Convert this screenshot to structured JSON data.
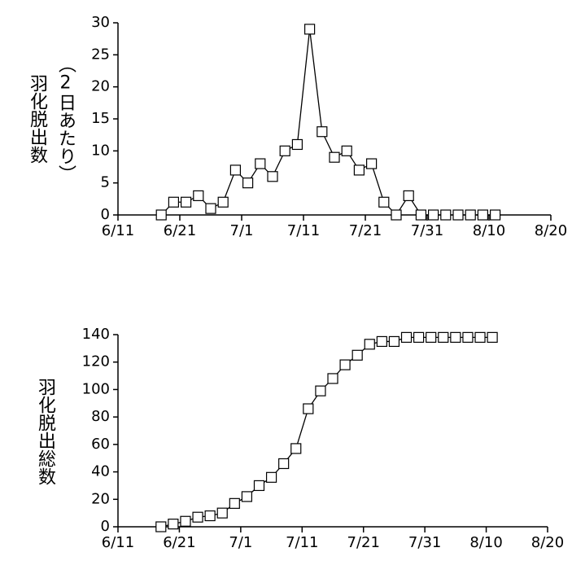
{
  "chart_data": [
    {
      "type": "line",
      "ylabel": [
        "羽化脱出数",
        "（2日あたり）"
      ],
      "x": [
        "6/18",
        "6/20",
        "6/22",
        "6/24",
        "6/26",
        "6/28",
        "6/30",
        "7/2",
        "7/4",
        "7/6",
        "7/8",
        "7/10",
        "7/12",
        "7/14",
        "7/16",
        "7/18",
        "7/20",
        "7/22",
        "7/24",
        "7/26",
        "7/28",
        "7/30",
        "8/1",
        "8/3",
        "8/5",
        "8/7",
        "8/9",
        "8/11"
      ],
      "series": [
        {
          "color": "#000000",
          "values": [
            0,
            2,
            2,
            3,
            1,
            2,
            7,
            5,
            8,
            6,
            10,
            11,
            29,
            13,
            9,
            10,
            7,
            8,
            2,
            0,
            3,
            0,
            0,
            0,
            0,
            0,
            0,
            0
          ]
        }
      ],
      "xlim": [
        "6/11",
        "8/20"
      ],
      "xticks": [
        "6/11",
        "6/21",
        "7/1",
        "7/11",
        "7/21",
        "7/31",
        "8/10",
        "8/20"
      ],
      "ylim": [
        0,
        30
      ],
      "yticks": [
        0,
        5,
        10,
        15,
        20,
        25,
        30
      ]
    },
    {
      "type": "line",
      "ylabel": [
        "羽化脱出総数"
      ],
      "x": [
        "6/18",
        "6/20",
        "6/22",
        "6/24",
        "6/26",
        "6/28",
        "6/30",
        "7/2",
        "7/4",
        "7/6",
        "7/8",
        "7/10",
        "7/12",
        "7/14",
        "7/16",
        "7/18",
        "7/20",
        "7/22",
        "7/24",
        "7/26",
        "7/28",
        "7/30",
        "8/1",
        "8/3",
        "8/5",
        "8/7",
        "8/9",
        "8/11"
      ],
      "series": [
        {
          "color": "#000000",
          "values": [
            0,
            2,
            4,
            7,
            8,
            10,
            17,
            22,
            30,
            36,
            46,
            57,
            86,
            99,
            108,
            118,
            125,
            133,
            135,
            135,
            138,
            138,
            138,
            138,
            138,
            138,
            138,
            138
          ]
        }
      ],
      "xlim": [
        "6/11",
        "8/20"
      ],
      "xticks": [
        "6/11",
        "6/21",
        "7/1",
        "7/11",
        "7/21",
        "7/31",
        "8/10",
        "8/20"
      ],
      "ylim": [
        0,
        140
      ],
      "yticks": [
        0,
        20,
        40,
        60,
        80,
        100,
        120,
        140
      ]
    }
  ]
}
